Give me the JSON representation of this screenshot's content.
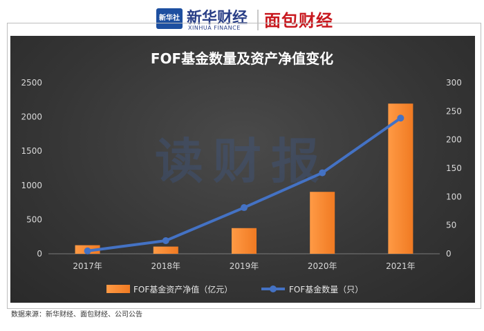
{
  "header": {
    "logo_xinhua": "新华社",
    "logo_finance": "新华财经",
    "logo_finance_en": "XINHUA FINANCE",
    "logo_mianbao": "面包财经"
  },
  "watermark": "读财报",
  "source": "数据来源：新华财经、面包财经、公司公告",
  "colors": {
    "bar": "#f07a22",
    "line": "#4472c4",
    "background": "#3a3a3a"
  },
  "chart_data": {
    "type": "bar+line",
    "title": "FOF基金数量及资产净值变化",
    "categories": [
      "2017年",
      "2018年",
      "2019年",
      "2020年",
      "2021年"
    ],
    "series": [
      {
        "name": "FOF基金资产净值（亿元）",
        "type": "bar",
        "axis": "left",
        "values": [
          125,
          105,
          375,
          905,
          2195
        ]
      },
      {
        "name": "FOF基金数量（只）",
        "type": "line",
        "axis": "right",
        "values": [
          5,
          23,
          81,
          142,
          238
        ]
      }
    ],
    "yleft": {
      "ylim": [
        0,
        2500
      ],
      "ticks": [
        "0",
        "500",
        "1000",
        "1500",
        "2000",
        "2500"
      ]
    },
    "yright": {
      "ylim": [
        0,
        300
      ],
      "ticks": [
        "0",
        "50",
        "100",
        "150",
        "200",
        "250",
        "300"
      ]
    },
    "legend_position": "bottom",
    "grid": false
  }
}
